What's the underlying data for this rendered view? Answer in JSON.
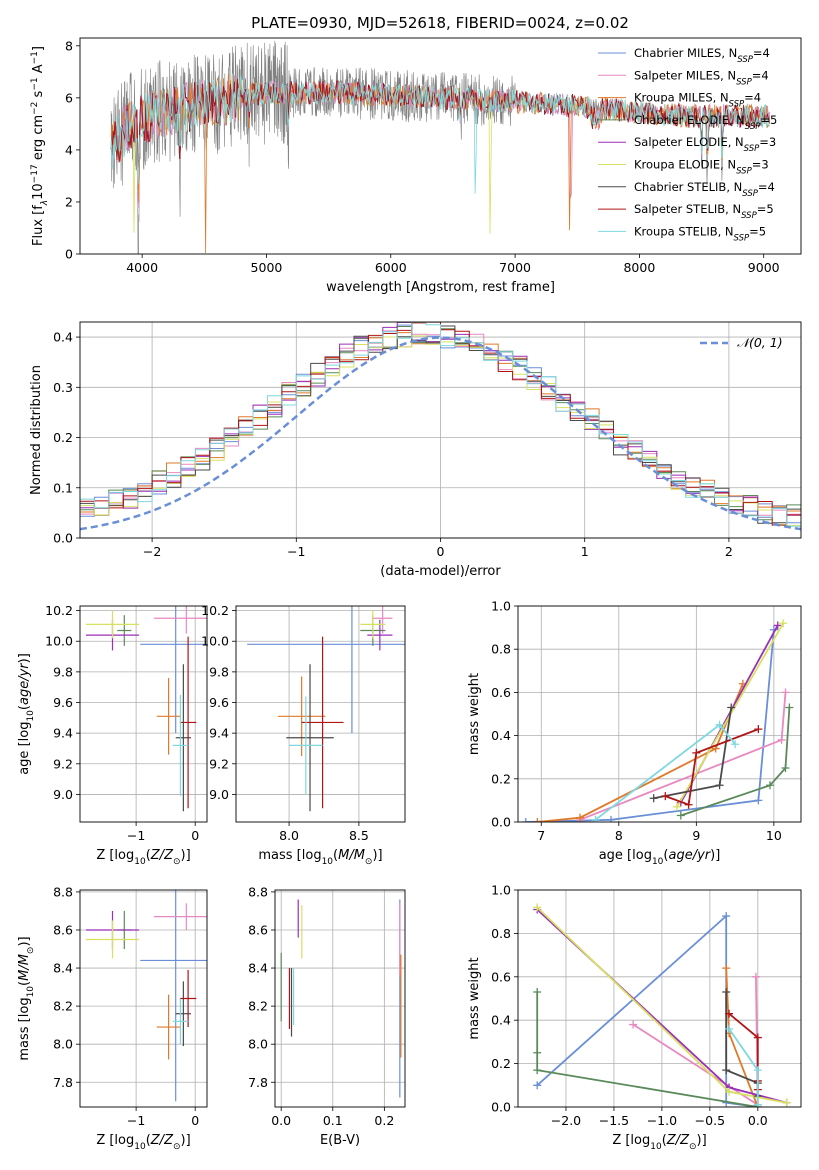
{
  "figure_title": "PLATE=0930, MJD=52618, FIBERID=0024, z=0.02",
  "colors": {
    "chabrier_miles": "#6a8fd8",
    "salpeter_miles": "#e889c0",
    "kroupa_miles": "#e07a2a",
    "chabrier_elodie": "#5a8a5a",
    "salpeter_elodie": "#9a2fb8",
    "kroupa_elodie": "#d8e060",
    "chabrier_stelib": "#4a4a4a",
    "salpeter_stelib": "#b01515",
    "kroupa_stelib": "#7fd8e0",
    "data": "#808080",
    "gaussian": "#6a8fd8"
  },
  "chart_data": [
    {
      "id": "spectrum",
      "type": "line",
      "xlabel": "wavelength [Angstrom, rest frame]",
      "ylabel": "Flux [f_λ 10^-17 erg cm^-2 s^-1 A^-1]",
      "xlim": [
        3500,
        9300
      ],
      "ylim": [
        0,
        8.3
      ],
      "xticks": [
        4000,
        5000,
        6000,
        7000,
        8000,
        9000
      ],
      "yticks": [
        0,
        2,
        4,
        6,
        8
      ],
      "legend_position": "top-right",
      "legend": [
        {
          "label": "Chabrier MILES, N",
          "sub": "SSP",
          "suffix": "=4",
          "color_key": "chabrier_miles"
        },
        {
          "label": "Salpeter MILES, N",
          "sub": "SSP",
          "suffix": "=4",
          "color_key": "salpeter_miles"
        },
        {
          "label": "Kroupa MILES, N",
          "sub": "SSP",
          "suffix": "=4",
          "color_key": "kroupa_miles"
        },
        {
          "label": "Chabrier ELODIE, N",
          "sub": "SSP",
          "suffix": "=5",
          "color_key": "chabrier_elodie"
        },
        {
          "label": "Salpeter ELODIE, N",
          "sub": "SSP",
          "suffix": "=3",
          "color_key": "salpeter_elodie"
        },
        {
          "label": "Kroupa ELODIE, N",
          "sub": "SSP",
          "suffix": "=3",
          "color_key": "kroupa_elodie"
        },
        {
          "label": "Chabrier STELIB, N",
          "sub": "SSP",
          "suffix": "=4",
          "color_key": "chabrier_stelib"
        },
        {
          "label": "Salpeter STELIB, N",
          "sub": "SSP",
          "suffix": "=5",
          "color_key": "salpeter_stelib"
        },
        {
          "label": "Kroupa STELIB, N",
          "sub": "SSP",
          "suffix": "=5",
          "color_key": "kroupa_stelib"
        }
      ],
      "continuum": {
        "x": [
          3750,
          3900,
          4100,
          4300,
          4600,
          4800,
          5000,
          5300,
          5600,
          6000,
          6400,
          6800,
          7200,
          7450,
          7700,
          7900,
          8100,
          8400,
          8700,
          9050
        ],
        "y": [
          4.0,
          5.0,
          5.4,
          5.6,
          5.8,
          6.1,
          6.2,
          6.2,
          6.2,
          6.1,
          6.0,
          5.9,
          5.8,
          5.7,
          5.6,
          5.5,
          5.4,
          5.3,
          5.3,
          5.3
        ]
      },
      "absorption_dips": [
        {
          "x": 3935,
          "depth": 5.5,
          "series": "kroupa_elodie"
        },
        {
          "x": 3970,
          "depth": 4.0,
          "series": "all"
        },
        {
          "x": 4305,
          "depth": 1.5,
          "series": "all"
        },
        {
          "x": 4510,
          "depth": 5.9,
          "series": "kroupa_miles"
        },
        {
          "x": 4861,
          "depth": 1.2,
          "series": "all"
        },
        {
          "x": 5175,
          "depth": 1.3,
          "series": "all"
        },
        {
          "x": 6563,
          "depth": 1.0,
          "series": "all"
        },
        {
          "x": 6680,
          "depth": 4.5,
          "series": "kroupa_stelib"
        },
        {
          "x": 6800,
          "depth": 5.9,
          "series": "kroupa_elodie"
        },
        {
          "x": 7440,
          "depth": 5.7,
          "series": "kroupa_miles"
        },
        {
          "x": 7450,
          "depth": 5.6,
          "series": "salpeter_miles"
        },
        {
          "x": 8500,
          "depth": 1.5,
          "series": "all"
        },
        {
          "x": 8545,
          "depth": 2.0,
          "series": "all"
        },
        {
          "x": 8665,
          "depth": 1.8,
          "series": "all"
        }
      ]
    },
    {
      "id": "residuals",
      "type": "histogram",
      "xlabel": "(data-model)/error",
      "ylabel": "Normed distribution",
      "xlim": [
        -2.5,
        2.5
      ],
      "ylim": [
        0,
        0.43
      ],
      "xticks": [
        -2,
        -1,
        0,
        1,
        2
      ],
      "yticks": [
        0.0,
        0.1,
        0.2,
        0.3,
        0.4
      ],
      "bin_width": 0.1,
      "legend_position": "top-right",
      "legend": [
        {
          "label": "𝒩(0, 1)",
          "color_key": "gaussian",
          "style": "dashed"
        }
      ],
      "gaussian": {
        "mu": 0,
        "sigma": 1
      }
    },
    {
      "id": "age_vs_Z",
      "type": "errorbar",
      "xlabel": "Z [log10(Z/Z⊙)]",
      "ylabel": "age [log10(age/yr)]",
      "xlim": [
        -1.95,
        0.2
      ],
      "ylim": [
        8.82,
        10.23
      ],
      "xticks": [
        -1,
        0
      ],
      "yticks": [
        9.0,
        9.2,
        9.4,
        9.6,
        9.8,
        10.0,
        10.2
      ],
      "points": [
        {
          "key": "chabrier_miles",
          "x": -0.33,
          "xerr": 0.6,
          "y": 9.98,
          "yerr": 0.58
        },
        {
          "key": "salpeter_miles",
          "x": -0.15,
          "xerr": 0.55,
          "y": 10.15,
          "yerr": 0.1
        },
        {
          "key": "kroupa_miles",
          "x": -0.45,
          "xerr": 0.2,
          "y": 9.51,
          "yerr": 0.25
        },
        {
          "key": "chabrier_elodie",
          "x": -1.2,
          "xerr": 0.12,
          "y": 10.07,
          "yerr": 0.1
        },
        {
          "key": "salpeter_elodie",
          "x": -1.4,
          "xerr": 0.45,
          "y": 10.04,
          "yerr": 0.1
        },
        {
          "key": "kroupa_elodie",
          "x": -1.4,
          "xerr": 0.45,
          "y": 10.11,
          "yerr": 0.09
        },
        {
          "key": "chabrier_stelib",
          "x": -0.2,
          "xerr": 0.13,
          "y": 9.37,
          "yerr": 0.48
        },
        {
          "key": "salpeter_stelib",
          "x": -0.12,
          "xerr": 0.14,
          "y": 9.47,
          "yerr": 0.56
        },
        {
          "key": "kroupa_stelib",
          "x": -0.25,
          "xerr": 0.13,
          "y": 9.32,
          "yerr": 0.33
        }
      ]
    },
    {
      "id": "age_vs_mass",
      "type": "errorbar",
      "xlabel": "mass [log10(M/M⊙)]",
      "ylabel": "",
      "xlim": [
        7.62,
        8.83
      ],
      "ylim": [
        8.82,
        10.23
      ],
      "xticks": [
        8.0,
        8.5
      ],
      "yticks": [
        9.0,
        9.2,
        9.4,
        9.6,
        9.8,
        10.0,
        10.2
      ],
      "points": [
        {
          "key": "chabrier_miles",
          "x": 8.45,
          "xerr": 0.75,
          "y": 9.98,
          "yerr": 0.58
        },
        {
          "key": "salpeter_miles",
          "x": 8.67,
          "xerr": 0.07,
          "y": 10.15,
          "yerr": 0.1
        },
        {
          "key": "kroupa_miles",
          "x": 8.09,
          "xerr": 0.17,
          "y": 9.51,
          "yerr": 0.26
        },
        {
          "key": "chabrier_elodie",
          "x": 8.6,
          "xerr": 0.09,
          "y": 10.07,
          "yerr": 0.1
        },
        {
          "key": "salpeter_elodie",
          "x": 8.65,
          "xerr": 0.09,
          "y": 10.04,
          "yerr": 0.1
        },
        {
          "key": "kroupa_elodie",
          "x": 8.6,
          "xerr": 0.09,
          "y": 10.11,
          "yerr": 0.09
        },
        {
          "key": "chabrier_stelib",
          "x": 8.15,
          "xerr": 0.17,
          "y": 9.37,
          "yerr": 0.48
        },
        {
          "key": "salpeter_stelib",
          "x": 8.24,
          "xerr": 0.15,
          "y": 9.47,
          "yerr": 0.56
        },
        {
          "key": "kroupa_stelib",
          "x": 8.12,
          "xerr": 0.12,
          "y": 9.32,
          "yerr": 0.32
        }
      ]
    },
    {
      "id": "massweight_vs_age",
      "type": "line",
      "xlabel": "age [log10(age/yr)]",
      "ylabel": "mass weight",
      "xlim": [
        6.7,
        10.35
      ],
      "ylim": [
        0,
        1.0
      ],
      "xticks": [
        7,
        8,
        9,
        10
      ],
      "yticks": [
        0.0,
        0.2,
        0.4,
        0.6,
        0.8,
        1.0
      ],
      "series": [
        {
          "key": "chabrier_miles",
          "x": [
            6.8,
            7.9,
            9.8,
            10.0
          ],
          "y": [
            0.0,
            0.01,
            0.1,
            0.89
          ]
        },
        {
          "key": "salpeter_miles",
          "x": [
            7.5,
            10.1,
            10.15
          ],
          "y": [
            0.01,
            0.38,
            0.6
          ]
        },
        {
          "key": "kroupa_miles",
          "x": [
            6.95,
            7.5,
            9.25,
            9.6
          ],
          "y": [
            0.0,
            0.02,
            0.34,
            0.64
          ]
        },
        {
          "key": "chabrier_elodie",
          "x": [
            8.8,
            9.95,
            10.15,
            10.2
          ],
          "y": [
            0.03,
            0.17,
            0.25,
            0.53
          ]
        },
        {
          "key": "salpeter_elodie",
          "x": [
            8.8,
            10.05
          ],
          "y": [
            0.09,
            0.91
          ]
        },
        {
          "key": "kroupa_elodie",
          "x": [
            8.75,
            10.12
          ],
          "y": [
            0.07,
            0.92
          ]
        },
        {
          "key": "chabrier_stelib",
          "x": [
            8.45,
            9.3,
            9.45
          ],
          "y": [
            0.11,
            0.17,
            0.53
          ]
        },
        {
          "key": "salpeter_stelib",
          "x": [
            8.6,
            8.9,
            9.0,
            9.8
          ],
          "y": [
            0.12,
            0.08,
            0.32,
            0.43
          ]
        },
        {
          "key": "kroupa_stelib",
          "x": [
            7.7,
            9.3,
            9.5
          ],
          "y": [
            0.01,
            0.45,
            0.36
          ]
        }
      ]
    },
    {
      "id": "mass_vs_Z",
      "type": "errorbar",
      "xlabel": "Z [log10(Z/Z⊙)]",
      "ylabel": "mass [log10(M/M⊙)]",
      "xlim": [
        -1.95,
        0.2
      ],
      "ylim": [
        7.67,
        8.81
      ],
      "xticks": [
        -1,
        0
      ],
      "yticks": [
        7.8,
        8.0,
        8.2,
        8.4,
        8.6,
        8.8
      ],
      "points": [
        {
          "key": "chabrier_miles",
          "x": -0.33,
          "xerr": 0.6,
          "y": 8.44,
          "yerr": 0.74
        },
        {
          "key": "salpeter_miles",
          "x": -0.15,
          "xerr": 0.55,
          "y": 8.67,
          "yerr": 0.07
        },
        {
          "key": "kroupa_miles",
          "x": -0.45,
          "xerr": 0.2,
          "y": 8.09,
          "yerr": 0.17
        },
        {
          "key": "chabrier_elodie",
          "x": -1.2,
          "xerr": 0.12,
          "y": 8.6,
          "yerr": 0.1
        },
        {
          "key": "salpeter_elodie",
          "x": -1.4,
          "xerr": 0.45,
          "y": 8.6,
          "yerr": 0.1
        },
        {
          "key": "kroupa_elodie",
          "x": -1.4,
          "xerr": 0.45,
          "y": 8.55,
          "yerr": 0.1
        },
        {
          "key": "chabrier_stelib",
          "x": -0.2,
          "xerr": 0.13,
          "y": 8.16,
          "yerr": 0.17
        },
        {
          "key": "salpeter_stelib",
          "x": -0.12,
          "xerr": 0.14,
          "y": 8.24,
          "yerr": 0.15
        },
        {
          "key": "kroupa_stelib",
          "x": -0.25,
          "xerr": 0.13,
          "y": 8.12,
          "yerr": 0.12
        }
      ]
    },
    {
      "id": "mass_vs_ebv",
      "type": "errorbar",
      "xlabel": "E(B-V)",
      "ylabel": "",
      "xlim": [
        -0.012,
        0.24
      ],
      "ylim": [
        7.67,
        8.81
      ],
      "xticks": [
        0.0,
        0.1,
        0.2
      ],
      "yticks": [
        7.8,
        8.0,
        8.2,
        8.4,
        8.6,
        8.8
      ],
      "points": [
        {
          "key": "chabrier_miles",
          "x": 0.23,
          "xerr": 0,
          "y": 8.24,
          "yerr": 0.52
        },
        {
          "key": "salpeter_miles",
          "x": 0.23,
          "xerr": 0,
          "y": 8.55,
          "yerr": 0.19
        },
        {
          "key": "kroupa_miles",
          "x": 0.232,
          "xerr": 0,
          "y": 8.2,
          "yerr": 0.27
        },
        {
          "key": "chabrier_elodie",
          "x": 0.0,
          "xerr": 0,
          "y": 8.3,
          "yerr": 0.18
        },
        {
          "key": "salpeter_elodie",
          "x": 0.033,
          "xerr": 0,
          "y": 8.66,
          "yerr": 0.1
        },
        {
          "key": "kroupa_elodie",
          "x": 0.04,
          "xerr": 0,
          "y": 8.59,
          "yerr": 0.14
        },
        {
          "key": "chabrier_stelib",
          "x": 0.02,
          "xerr": 0,
          "y": 8.22,
          "yerr": 0.18
        },
        {
          "key": "salpeter_stelib",
          "x": 0.016,
          "xerr": 0,
          "y": 8.24,
          "yerr": 0.16
        },
        {
          "key": "kroupa_stelib",
          "x": 0.024,
          "xerr": 0,
          "y": 8.25,
          "yerr": 0.15
        }
      ]
    },
    {
      "id": "massweight_vs_Z",
      "type": "line",
      "xlabel": "Z [log10(Z/Z⊙)]",
      "ylabel": "mass weight",
      "xlim": [
        -2.5,
        0.45
      ],
      "ylim": [
        0,
        1.0
      ],
      "xticks": [
        -2.0,
        -1.5,
        -1.0,
        -0.5,
        0.0
      ],
      "yticks": [
        0.0,
        0.2,
        0.4,
        0.6,
        0.8,
        1.0
      ],
      "series": [
        {
          "key": "chabrier_miles",
          "x": [
            -2.3,
            -0.33,
            -0.33,
            0.0
          ],
          "y": [
            0.1,
            0.88,
            0.02,
            0.0
          ]
        },
        {
          "key": "salpeter_miles",
          "x": [
            -1.3,
            0.0,
            -0.02
          ],
          "y": [
            0.38,
            0.01,
            0.6
          ]
        },
        {
          "key": "kroupa_miles",
          "x": [
            -0.33,
            -0.3,
            0.0
          ],
          "y": [
            0.64,
            0.34,
            0.0
          ]
        },
        {
          "key": "chabrier_elodie",
          "x": [
            -2.3,
            -2.3,
            -2.3,
            0.0
          ],
          "y": [
            0.53,
            0.25,
            0.17,
            0.0
          ]
        },
        {
          "key": "salpeter_elodie",
          "x": [
            -2.3,
            -0.3,
            0.3
          ],
          "y": [
            0.91,
            0.09,
            0.02
          ]
        },
        {
          "key": "kroupa_elodie",
          "x": [
            -2.3,
            -0.3,
            0.3
          ],
          "y": [
            0.92,
            0.07,
            0.02
          ]
        },
        {
          "key": "chabrier_stelib",
          "x": [
            -0.33,
            -0.33,
            0.0,
            0.0
          ],
          "y": [
            0.53,
            0.17,
            0.11,
            0.05
          ]
        },
        {
          "key": "salpeter_stelib",
          "x": [
            -0.3,
            0.0,
            0.0,
            0.0
          ],
          "y": [
            0.43,
            0.32,
            0.12,
            0.08
          ]
        },
        {
          "key": "kroupa_stelib",
          "x": [
            -0.3,
            0.0,
            0.0
          ],
          "y": [
            0.36,
            0.17,
            0.01
          ]
        }
      ]
    }
  ]
}
